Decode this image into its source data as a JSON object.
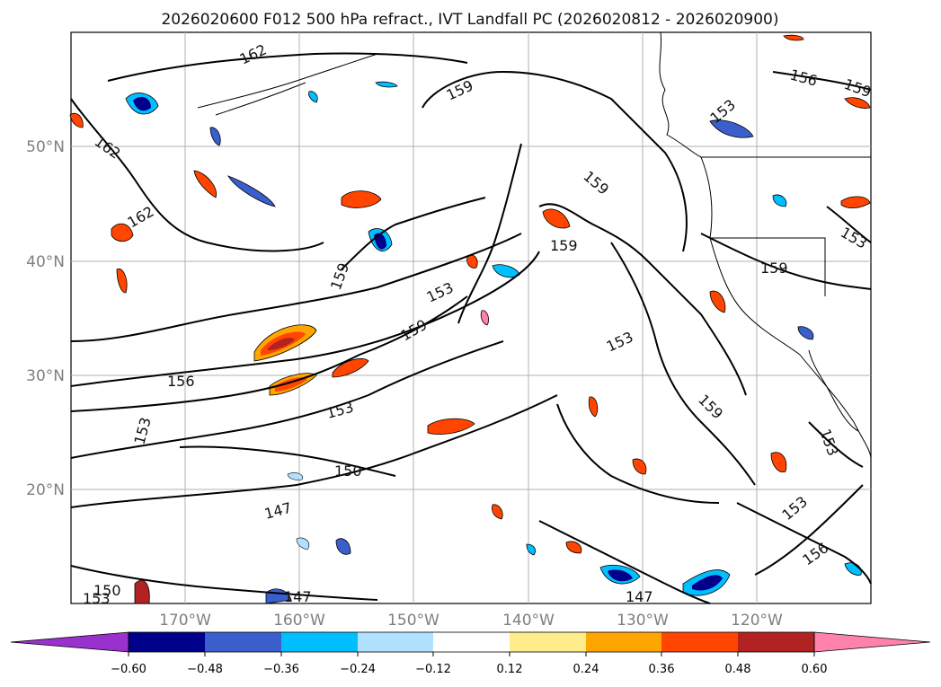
{
  "title": "2026020600 F012 500 hPa refract., IVT Landfall PC (2026020812 - 2026020900)",
  "map": {
    "lat_labels": [
      "50°N",
      "40°N",
      "30°N",
      "20°N"
    ],
    "lon_labels": [
      "170°W",
      "160°W",
      "150°W",
      "140°W",
      "130°W",
      "120°W"
    ],
    "contour_labels": [
      "162",
      "162",
      "162",
      "159",
      "159",
      "159",
      "159",
      "159",
      "159",
      "156",
      "156",
      "156",
      "153",
      "153",
      "153",
      "153",
      "153",
      "153",
      "153",
      "150",
      "150",
      "147",
      "147",
      "147",
      "153",
      "153",
      "159",
      "159"
    ]
  },
  "colorbar": {
    "ticks": [
      "−0.60",
      "−0.48",
      "−0.36",
      "−0.24",
      "−0.12",
      "0.12",
      "0.24",
      "0.36",
      "0.48",
      "0.60"
    ],
    "colors": {
      "under": "#9932cc",
      "c1": "#00008b",
      "c2": "#3a5fcd",
      "c3": "#00bfff",
      "c4": "#b0e2ff",
      "c5": "#ffffff",
      "c6": "#ffec8b",
      "c7": "#ffa500",
      "c8": "#ff4500",
      "c9": "#b22222",
      "over": "#ff82ab"
    }
  }
}
